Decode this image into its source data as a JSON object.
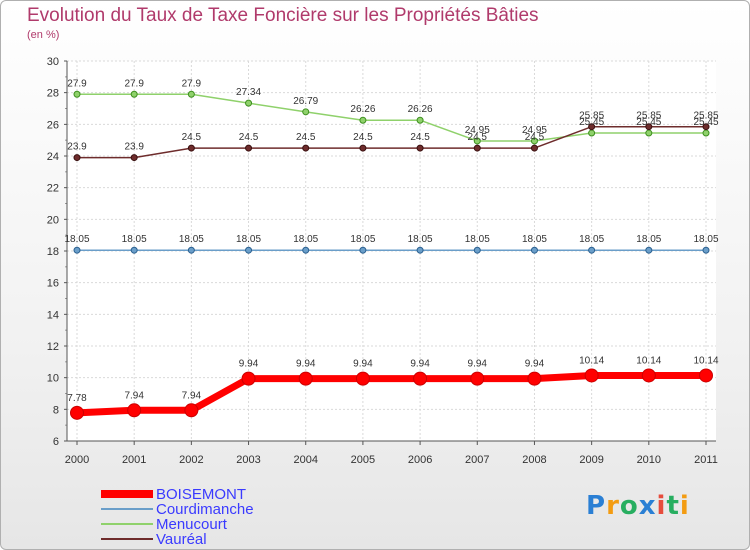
{
  "title": "Evolution du Taux de Taxe Foncière sur les Propriétés Bâties",
  "unit": "(en %)",
  "logo": {
    "text": "Proxiti",
    "letters": [
      "P",
      "r",
      "o",
      "x",
      "i",
      "t",
      "i"
    ],
    "colors": [
      "#2a7fd4",
      "#f39c12",
      "#27ae60",
      "#2a7fd4",
      "#e74c3c",
      "#27ae60",
      "#f39c12"
    ]
  },
  "chart_data": {
    "type": "line",
    "title": "Evolution du Taux de Taxe Foncière sur les Propriétés Bâties",
    "ylabel": "(en %)",
    "xlabel": "",
    "ylim": [
      6,
      30
    ],
    "yticks": [
      6,
      8,
      10,
      12,
      14,
      16,
      18,
      20,
      22,
      24,
      26,
      28,
      30
    ],
    "categories": [
      "2000",
      "2001",
      "2002",
      "2003",
      "2004",
      "2005",
      "2006",
      "2007",
      "2008",
      "2009",
      "2010",
      "2011"
    ],
    "series": [
      {
        "name": "BOISEMONT",
        "color": "#ff0000",
        "labels": [
          "7.78",
          "7.94",
          "7.94",
          "9.94",
          "9.94",
          "9.94",
          "9.94",
          "9.94",
          "9.94",
          "10.14",
          "10.14",
          "10.14"
        ],
        "values": [
          7.78,
          7.94,
          7.94,
          9.94,
          9.94,
          9.94,
          9.94,
          9.94,
          9.94,
          10.14,
          10.14,
          10.14
        ]
      },
      {
        "name": "Courdimanche",
        "color": "#6a9ec9",
        "labels": [
          "18.05",
          "18.05",
          "18.05",
          "18.05",
          "18.05",
          "18.05",
          "18.05",
          "18.05",
          "18.05",
          "18.05",
          "18.05",
          "18.05"
        ],
        "values": [
          18.05,
          18.05,
          18.05,
          18.05,
          18.05,
          18.05,
          18.05,
          18.05,
          18.05,
          18.05,
          18.05,
          18.05
        ]
      },
      {
        "name": "Menucourt",
        "color": "#8fd16b",
        "labels": [
          "27.9",
          "27.9",
          "27.9",
          "27.34",
          "26.79",
          "26.26",
          "26.26",
          "24.95",
          "24.95",
          "25.45",
          "25.45",
          "25.45"
        ],
        "values": [
          27.9,
          27.9,
          27.9,
          27.34,
          26.79,
          26.26,
          26.26,
          24.95,
          24.95,
          25.45,
          25.45,
          25.45
        ]
      },
      {
        "name": "Vauréal",
        "color": "#6e2c2c",
        "labels": [
          "23.9",
          "23.9",
          "24.5",
          "24.5",
          "24.5",
          "24.5",
          "24.5",
          "24.5",
          "24.5",
          "25.85",
          "25.85",
          "25.85"
        ],
        "values": [
          23.9,
          23.9,
          24.5,
          24.5,
          24.5,
          24.5,
          24.5,
          24.5,
          24.5,
          25.85,
          25.85,
          25.85
        ]
      }
    ]
  }
}
